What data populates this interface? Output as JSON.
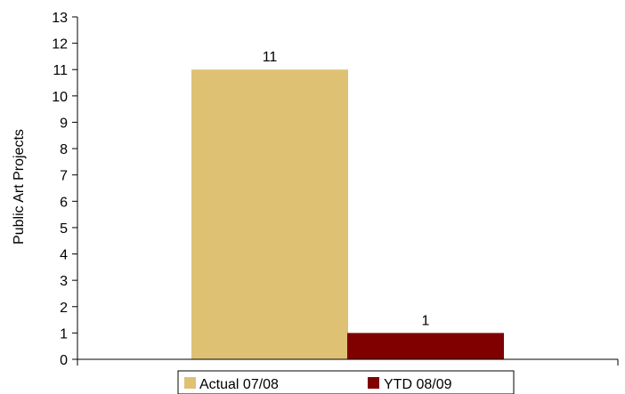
{
  "chart_data": {
    "type": "bar",
    "title": "",
    "xlabel": "",
    "ylabel": "Public Art Projects",
    "ylim": [
      0,
      13
    ],
    "yticks": [
      "0",
      "1",
      "2",
      "3",
      "4",
      "5",
      "6",
      "7",
      "8",
      "9",
      "10",
      "11",
      "12",
      "13"
    ],
    "grid": false,
    "legend_position": "bottom",
    "series": [
      {
        "name": "Actual 07/08",
        "values": [
          11
        ],
        "label": "11",
        "color": "#dfc174"
      },
      {
        "name": "YTD 08/09",
        "values": [
          1
        ],
        "label": "1",
        "color": "#800000"
      }
    ]
  }
}
